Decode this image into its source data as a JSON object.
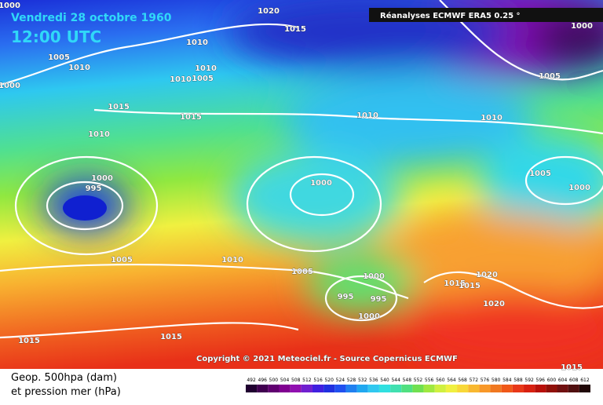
{
  "header": {
    "date": "Vendredi 28 octobre 1960",
    "time": "12:00 UTC",
    "source": "Réanalyses ECMWF ERA5 0.25 °"
  },
  "isobar_labels": [
    1000,
    1020,
    1015,
    1005,
    1010,
    1010,
    1010,
    1010,
    1005,
    1000,
    1015,
    1015,
    1010,
    1010,
    1000,
    995,
    1000,
    1005,
    1010,
    1005,
    1000,
    995,
    995,
    1000,
    1015,
    1015,
    1020,
    1020,
    1005,
    1010,
    1005,
    1000,
    1000,
    1015,
    1015,
    1015
  ],
  "copyright": "Copyright © 2021 Meteociel.fr - Source Copernicus ECMWF",
  "legend": {
    "line1": "Geop. 500hpa (dam)",
    "line2": "et pression mer (hPa)",
    "scale": [
      492,
      496,
      500,
      504,
      508,
      512,
      516,
      520,
      524,
      528,
      532,
      536,
      540,
      544,
      548,
      552,
      556,
      560,
      564,
      568,
      572,
      576,
      580,
      584,
      588,
      592,
      596,
      600,
      604,
      608,
      612
    ]
  }
}
